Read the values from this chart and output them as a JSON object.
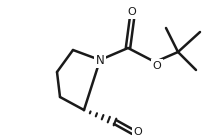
{
  "bg_color": "#ffffff",
  "line_color": "#1a1a1a",
  "line_width": 1.8,
  "figsize": [
    2.1,
    1.4
  ],
  "dpi": 100,
  "N_label": "N",
  "O_label": "O"
}
